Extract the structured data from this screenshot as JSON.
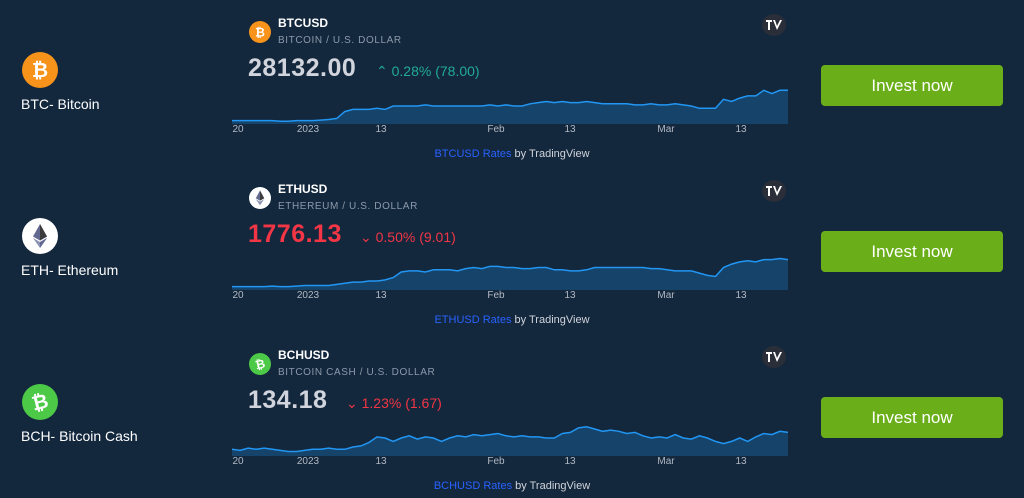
{
  "colors": {
    "background": "#13273d",
    "invest_button": "#6aaf19",
    "positive": "#22ab94",
    "negative": "#f23645",
    "chart_line": "#2196f3",
    "link": "#2962ff"
  },
  "axis_ticks": [
    "20",
    "2023",
    "13",
    "Feb",
    "13",
    "Mar",
    "13"
  ],
  "rows": [
    {
      "coin_label": "BTC- Bitcoin",
      "coin_icon": "bitcoin-icon",
      "coin_color": "#f7931a",
      "symbol": "BTCUSD",
      "subtitle": "BITCOIN / U.S. DOLLAR",
      "price": "28132.00",
      "price_color": "#d1d4dc",
      "change_arrow": "⌃",
      "change": "0.28% (78.00)",
      "change_direction": "up",
      "credit_link": "BTCUSD Rates",
      "credit_text": " by TradingView",
      "button_label": "Invest now",
      "sparkline": [
        3,
        3,
        3,
        3,
        3,
        3,
        2.5,
        2.5,
        3,
        3,
        3,
        3.5,
        4,
        5,
        11,
        13,
        13,
        13,
        14,
        13,
        16,
        16,
        16,
        16,
        17,
        16,
        16,
        16,
        16,
        16,
        16,
        16,
        17,
        16,
        17,
        16,
        16,
        18,
        19,
        20,
        19,
        20,
        19,
        19,
        20,
        19,
        18,
        18,
        18,
        18,
        17,
        17,
        18,
        17,
        17,
        18,
        17,
        16,
        14,
        14,
        14,
        22,
        20,
        23,
        25,
        25,
        30,
        27,
        30,
        30
      ]
    },
    {
      "coin_label": "ETH- Ethereum",
      "coin_icon": "ethereum-icon",
      "coin_color": "#ffffff",
      "symbol": "ETHUSD",
      "subtitle": "ETHEREUM / U.S. DOLLAR",
      "price": "1776.13",
      "price_color": "#f23645",
      "change_arrow": "⌄",
      "change": "0.50% (9.01)",
      "change_direction": "down",
      "credit_link": "ETHUSD Rates",
      "credit_text": " by TradingView",
      "button_label": "Invest now",
      "sparkline": [
        3,
        3,
        3,
        3,
        3,
        3.5,
        3,
        3,
        3.5,
        4,
        4,
        4,
        4,
        5,
        6,
        7,
        7,
        8,
        8,
        9,
        11,
        16,
        17,
        17,
        16,
        18,
        18,
        18,
        17,
        19,
        20,
        19,
        21,
        21,
        20,
        20,
        19,
        19,
        20,
        20,
        18,
        18,
        17,
        17,
        18,
        20,
        20,
        20,
        20,
        20,
        20,
        20,
        19,
        19,
        18,
        17,
        17,
        17,
        15,
        13,
        12,
        20,
        23,
        25,
        26,
        25,
        27,
        27,
        28,
        27
      ]
    },
    {
      "coin_label": "BCH- Bitcoin Cash",
      "coin_icon": "bitcoin-cash-icon",
      "coin_color": "#4cc947",
      "symbol": "BCHUSD",
      "subtitle": "BITCOIN CASH / U.S. DOLLAR",
      "price": "134.18",
      "price_color": "#d1d4dc",
      "change_arrow": "⌄",
      "change": "1.23% (1.67)",
      "change_direction": "down",
      "credit_link": "BCHUSD Rates",
      "credit_text": " by TradingView",
      "button_label": "Invest now",
      "sparkline": [
        6,
        5,
        7,
        6,
        7,
        6,
        5,
        4,
        4,
        5,
        6,
        6,
        7,
        6,
        6,
        8,
        9,
        12,
        17,
        16,
        13,
        16,
        18,
        15,
        17,
        16,
        13,
        16,
        18,
        17,
        19,
        18,
        19,
        20,
        18,
        17,
        18,
        17,
        17,
        16,
        16,
        20,
        21,
        25,
        26,
        24,
        22,
        23,
        22,
        20,
        21,
        18,
        16,
        17,
        16,
        19,
        16,
        15,
        18,
        16,
        13,
        11,
        13,
        16,
        13,
        17,
        20,
        19,
        22,
        21
      ]
    }
  ]
}
